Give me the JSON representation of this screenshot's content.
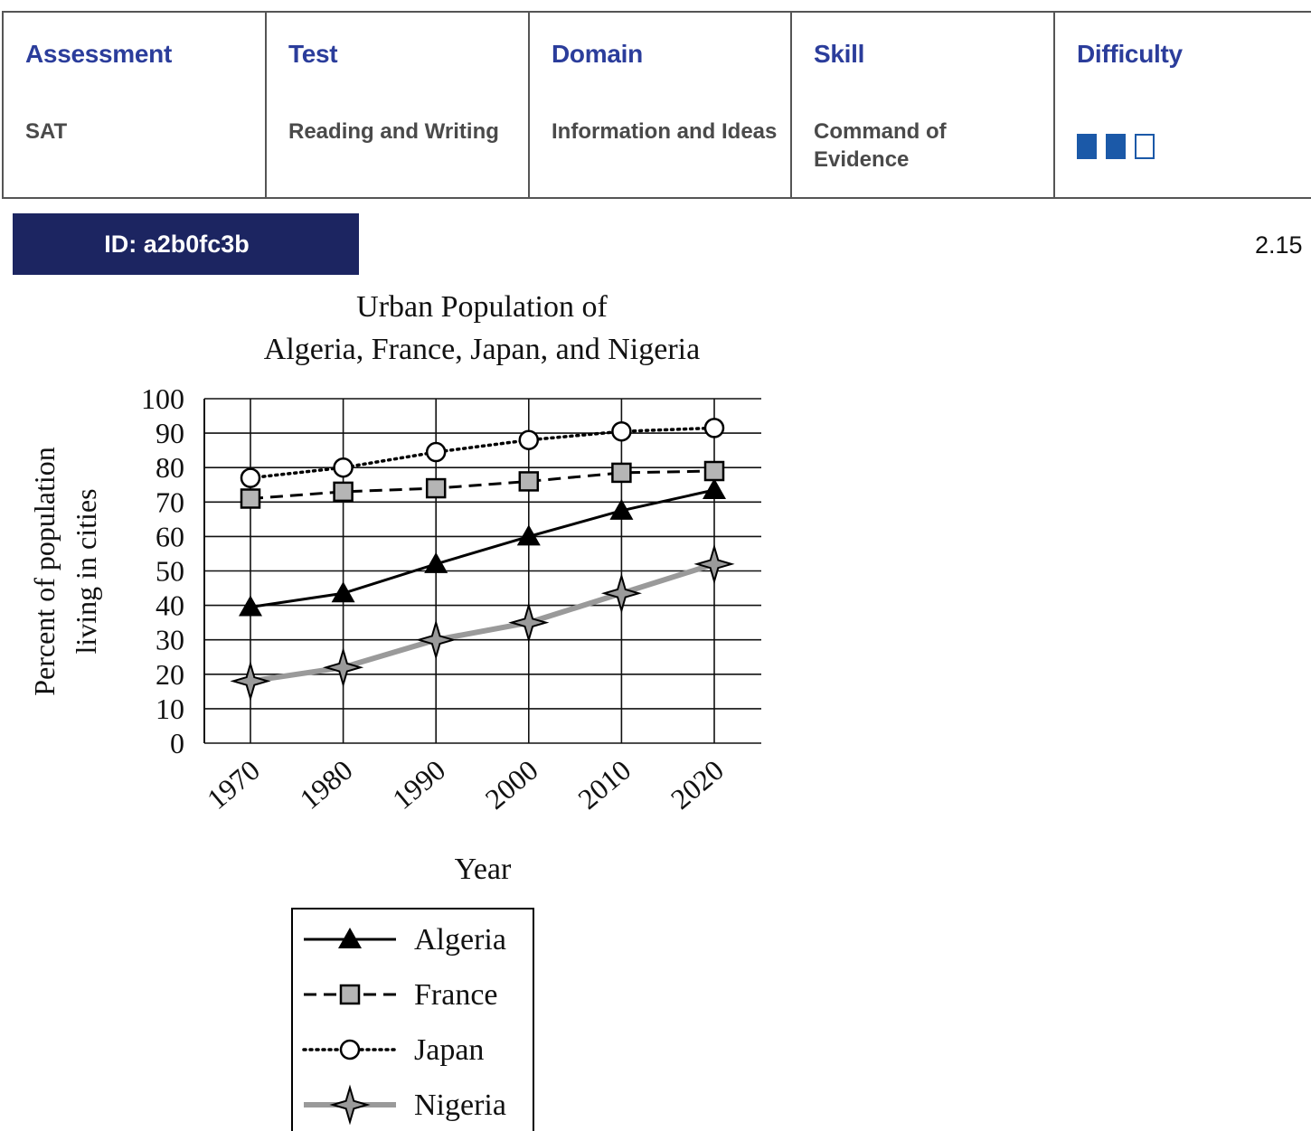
{
  "meta": {
    "columns": [
      {
        "key": "assessment",
        "header": "Assessment",
        "value": "SAT"
      },
      {
        "key": "test",
        "header": "Test",
        "value": "Reading and Writing"
      },
      {
        "key": "domain",
        "header": "Domain",
        "value": "Information and Ideas"
      },
      {
        "key": "skill",
        "header": "Skill",
        "value": "Command of Evidence"
      },
      {
        "key": "difficulty",
        "header": "Difficulty",
        "value": null
      }
    ],
    "difficulty_level": 2,
    "difficulty_max": 3
  },
  "question": {
    "id_label": "ID: a2b0fc3b",
    "version": "2.15"
  },
  "colors": {
    "header": "#2b3d9b",
    "badge": "#1c2561",
    "difficulty": "#1b59a8"
  },
  "chart_data": {
    "type": "line",
    "title": "Urban Population of\nAlgeria, France, Japan, and Nigeria",
    "title_lines": [
      "Urban Population of",
      "Algeria, France, Japan, and Nigeria"
    ],
    "xlabel": "Year",
    "ylabel_lines": [
      "Percent of population",
      "living in cities"
    ],
    "x": [
      "1970",
      "1980",
      "1990",
      "2000",
      "2010",
      "2020"
    ],
    "ylim": [
      0,
      100
    ],
    "yticks": [
      0,
      10,
      20,
      30,
      40,
      50,
      60,
      70,
      80,
      90,
      100
    ],
    "grid": true,
    "legend_position": "bottom",
    "series": [
      {
        "name": "Algeria",
        "values": [
          39.5,
          43.5,
          52,
          60,
          67.5,
          73.5
        ],
        "line": "solid",
        "marker": "triangle",
        "color": "#000000"
      },
      {
        "name": "France",
        "values": [
          71,
          73,
          74,
          76,
          78.5,
          79
        ],
        "line": "dashed",
        "marker": "square",
        "color": "#000000"
      },
      {
        "name": "Japan",
        "values": [
          77,
          80,
          84.5,
          88,
          90.5,
          91.5
        ],
        "line": "dotted",
        "marker": "circle",
        "color": "#000000"
      },
      {
        "name": "Nigeria",
        "values": [
          18,
          22,
          30,
          35,
          43.5,
          52
        ],
        "line": "solid-gray",
        "marker": "star",
        "color": "#9a9a9a"
      }
    ]
  }
}
